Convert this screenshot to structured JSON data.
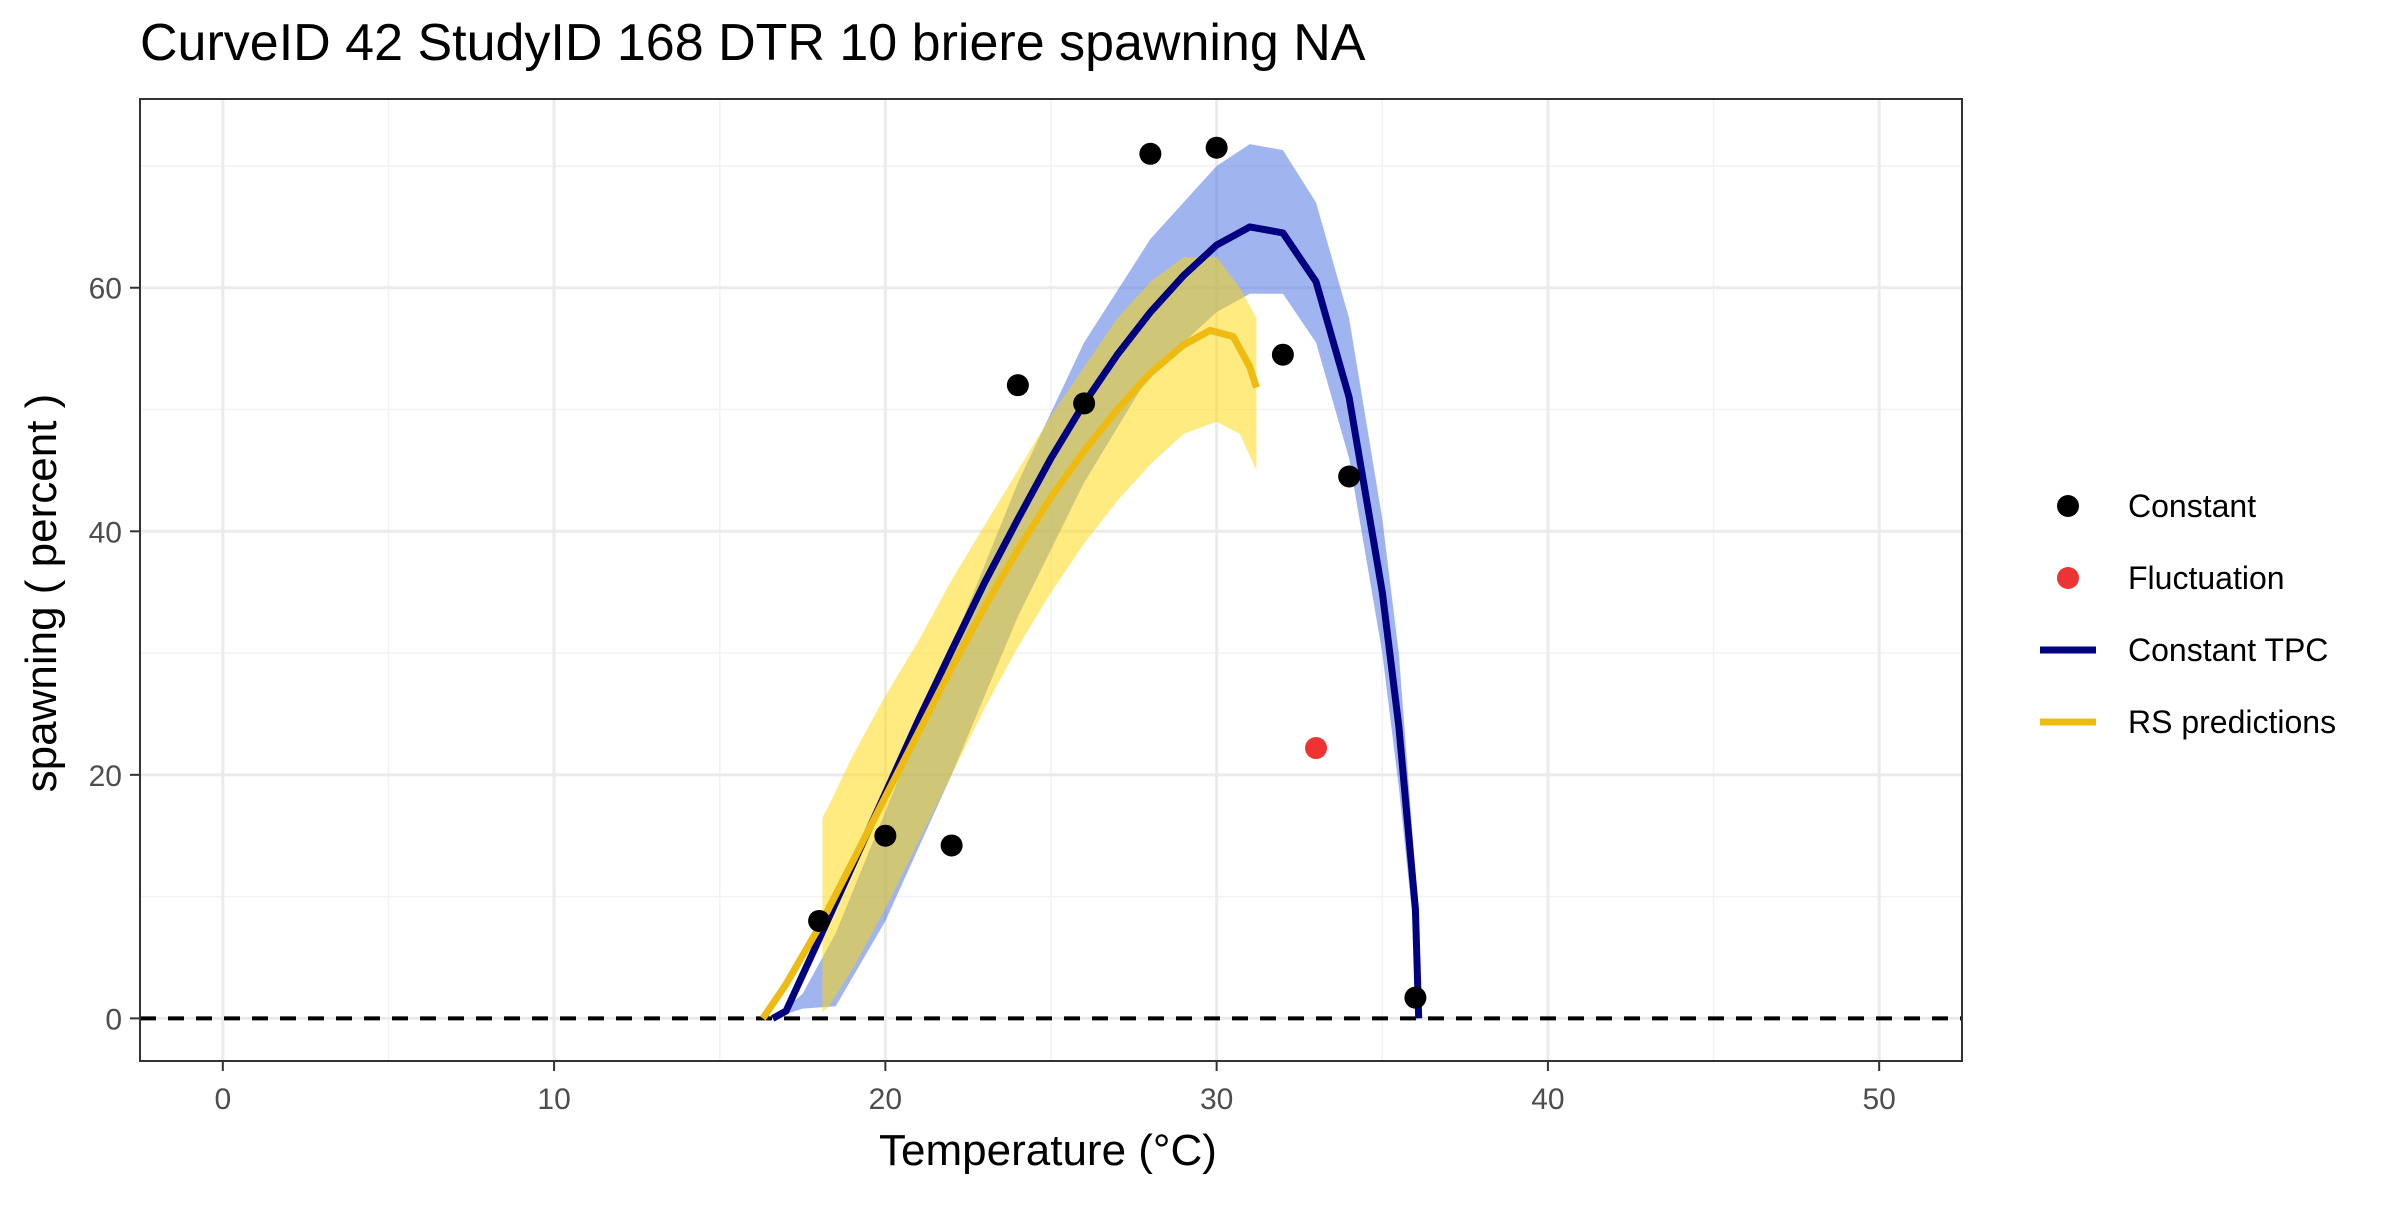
{
  "chart_data": {
    "type": "scatter",
    "title": "CurveID 42 StudyID 168 DTR 10 briere spawning NA",
    "xlabel": "Temperature (°C)",
    "ylabel": "spawning ( percent )",
    "xlim": [
      -2.5,
      52.5
    ],
    "ylim": [
      -3.5,
      75.5
    ],
    "x_ticks": [
      0,
      10,
      20,
      30,
      40,
      50
    ],
    "y_ticks": [
      0,
      20,
      40,
      60
    ],
    "grid": true,
    "reference_line": {
      "y": 0,
      "style": "dashed",
      "color": "#000000"
    },
    "legend_position": "right",
    "legend": [
      {
        "label": "Constant",
        "kind": "point",
        "color": "#000000"
      },
      {
        "label": "Fluctuation",
        "kind": "point",
        "color": "#EE3333"
      },
      {
        "label": "Constant TPC",
        "kind": "line",
        "color": "#000080"
      },
      {
        "label": "RS predictions",
        "kind": "line",
        "color": "#EEBB11"
      }
    ],
    "series": [
      {
        "name": "Constant",
        "type": "scatter",
        "color": "#000000",
        "points": [
          [
            18,
            8
          ],
          [
            20,
            15
          ],
          [
            22,
            14.2
          ],
          [
            24,
            52
          ],
          [
            26,
            50.5
          ],
          [
            28,
            71
          ],
          [
            30,
            71.5
          ],
          [
            32,
            54.5
          ],
          [
            34,
            44.5
          ],
          [
            36,
            1.7
          ]
        ]
      },
      {
        "name": "Fluctuation",
        "type": "scatter",
        "color": "#EE3333",
        "points": [
          [
            33,
            22.2
          ]
        ]
      },
      {
        "name": "Constant TPC",
        "type": "line",
        "color": "#000080",
        "tmin": 16.6,
        "tmax": 36.1,
        "points": [
          [
            16.6,
            0
          ],
          [
            17,
            0.6
          ],
          [
            18,
            6.5
          ],
          [
            19,
            12.5
          ],
          [
            20,
            18.5
          ],
          [
            21,
            24.5
          ],
          [
            22,
            30.2
          ],
          [
            23,
            35.8
          ],
          [
            24,
            41
          ],
          [
            25,
            46
          ],
          [
            26,
            50.5
          ],
          [
            27,
            54.5
          ],
          [
            28,
            58
          ],
          [
            29,
            61
          ],
          [
            30,
            63.5
          ],
          [
            31,
            65
          ],
          [
            32,
            64.5
          ],
          [
            33,
            60.5
          ],
          [
            34,
            51
          ],
          [
            35,
            35
          ],
          [
            35.5,
            24
          ],
          [
            36,
            9
          ],
          [
            36.1,
            0
          ]
        ],
        "ribbon": [
          [
            16.6,
            0,
            0
          ],
          [
            17.5,
            0.8,
            2
          ],
          [
            18.5,
            1,
            7
          ],
          [
            20,
            8,
            17
          ],
          [
            22,
            20,
            30.5
          ],
          [
            24,
            33,
            44
          ],
          [
            26,
            44,
            55.5
          ],
          [
            28,
            53,
            64
          ],
          [
            30,
            58,
            70
          ],
          [
            31,
            59.5,
            71.8
          ],
          [
            32,
            59.5,
            71.3
          ],
          [
            33,
            55.5,
            67
          ],
          [
            34,
            46,
            57.5
          ],
          [
            35,
            30,
            41
          ],
          [
            35.5,
            19,
            30
          ],
          [
            36,
            6,
            12
          ],
          [
            36.1,
            0,
            0
          ]
        ]
      },
      {
        "name": "RS predictions",
        "type": "line",
        "color": "#EEBB11",
        "points": [
          [
            16.3,
            0
          ],
          [
            17,
            2.8
          ],
          [
            18,
            7.5
          ],
          [
            19,
            12.8
          ],
          [
            20,
            18.2
          ],
          [
            21,
            23.5
          ],
          [
            22,
            28.8
          ],
          [
            23,
            33.8
          ],
          [
            24,
            38.5
          ],
          [
            25,
            42.8
          ],
          [
            26,
            46.6
          ],
          [
            27,
            50
          ],
          [
            28,
            53
          ],
          [
            29,
            55.3
          ],
          [
            29.8,
            56.5
          ],
          [
            30.5,
            56
          ],
          [
            31,
            53.5
          ],
          [
            31.2,
            51.8
          ]
        ],
        "ribbon": [
          [
            18.1,
            0.5,
            16.5
          ],
          [
            18.3,
            1,
            17.5
          ],
          [
            19,
            4,
            21.5
          ],
          [
            20,
            9,
            26.5
          ],
          [
            21,
            14.5,
            31
          ],
          [
            22,
            20,
            36
          ],
          [
            23,
            25.5,
            40.5
          ],
          [
            24,
            30.5,
            45
          ],
          [
            25,
            35,
            49.5
          ],
          [
            26,
            39,
            53.5
          ],
          [
            27,
            42.5,
            57.5
          ],
          [
            28,
            45.5,
            60.5
          ],
          [
            29,
            48,
            62.5
          ],
          [
            30,
            49,
            62.5
          ],
          [
            30.7,
            48,
            60
          ],
          [
            31.2,
            45,
            57.5
          ]
        ]
      }
    ]
  }
}
